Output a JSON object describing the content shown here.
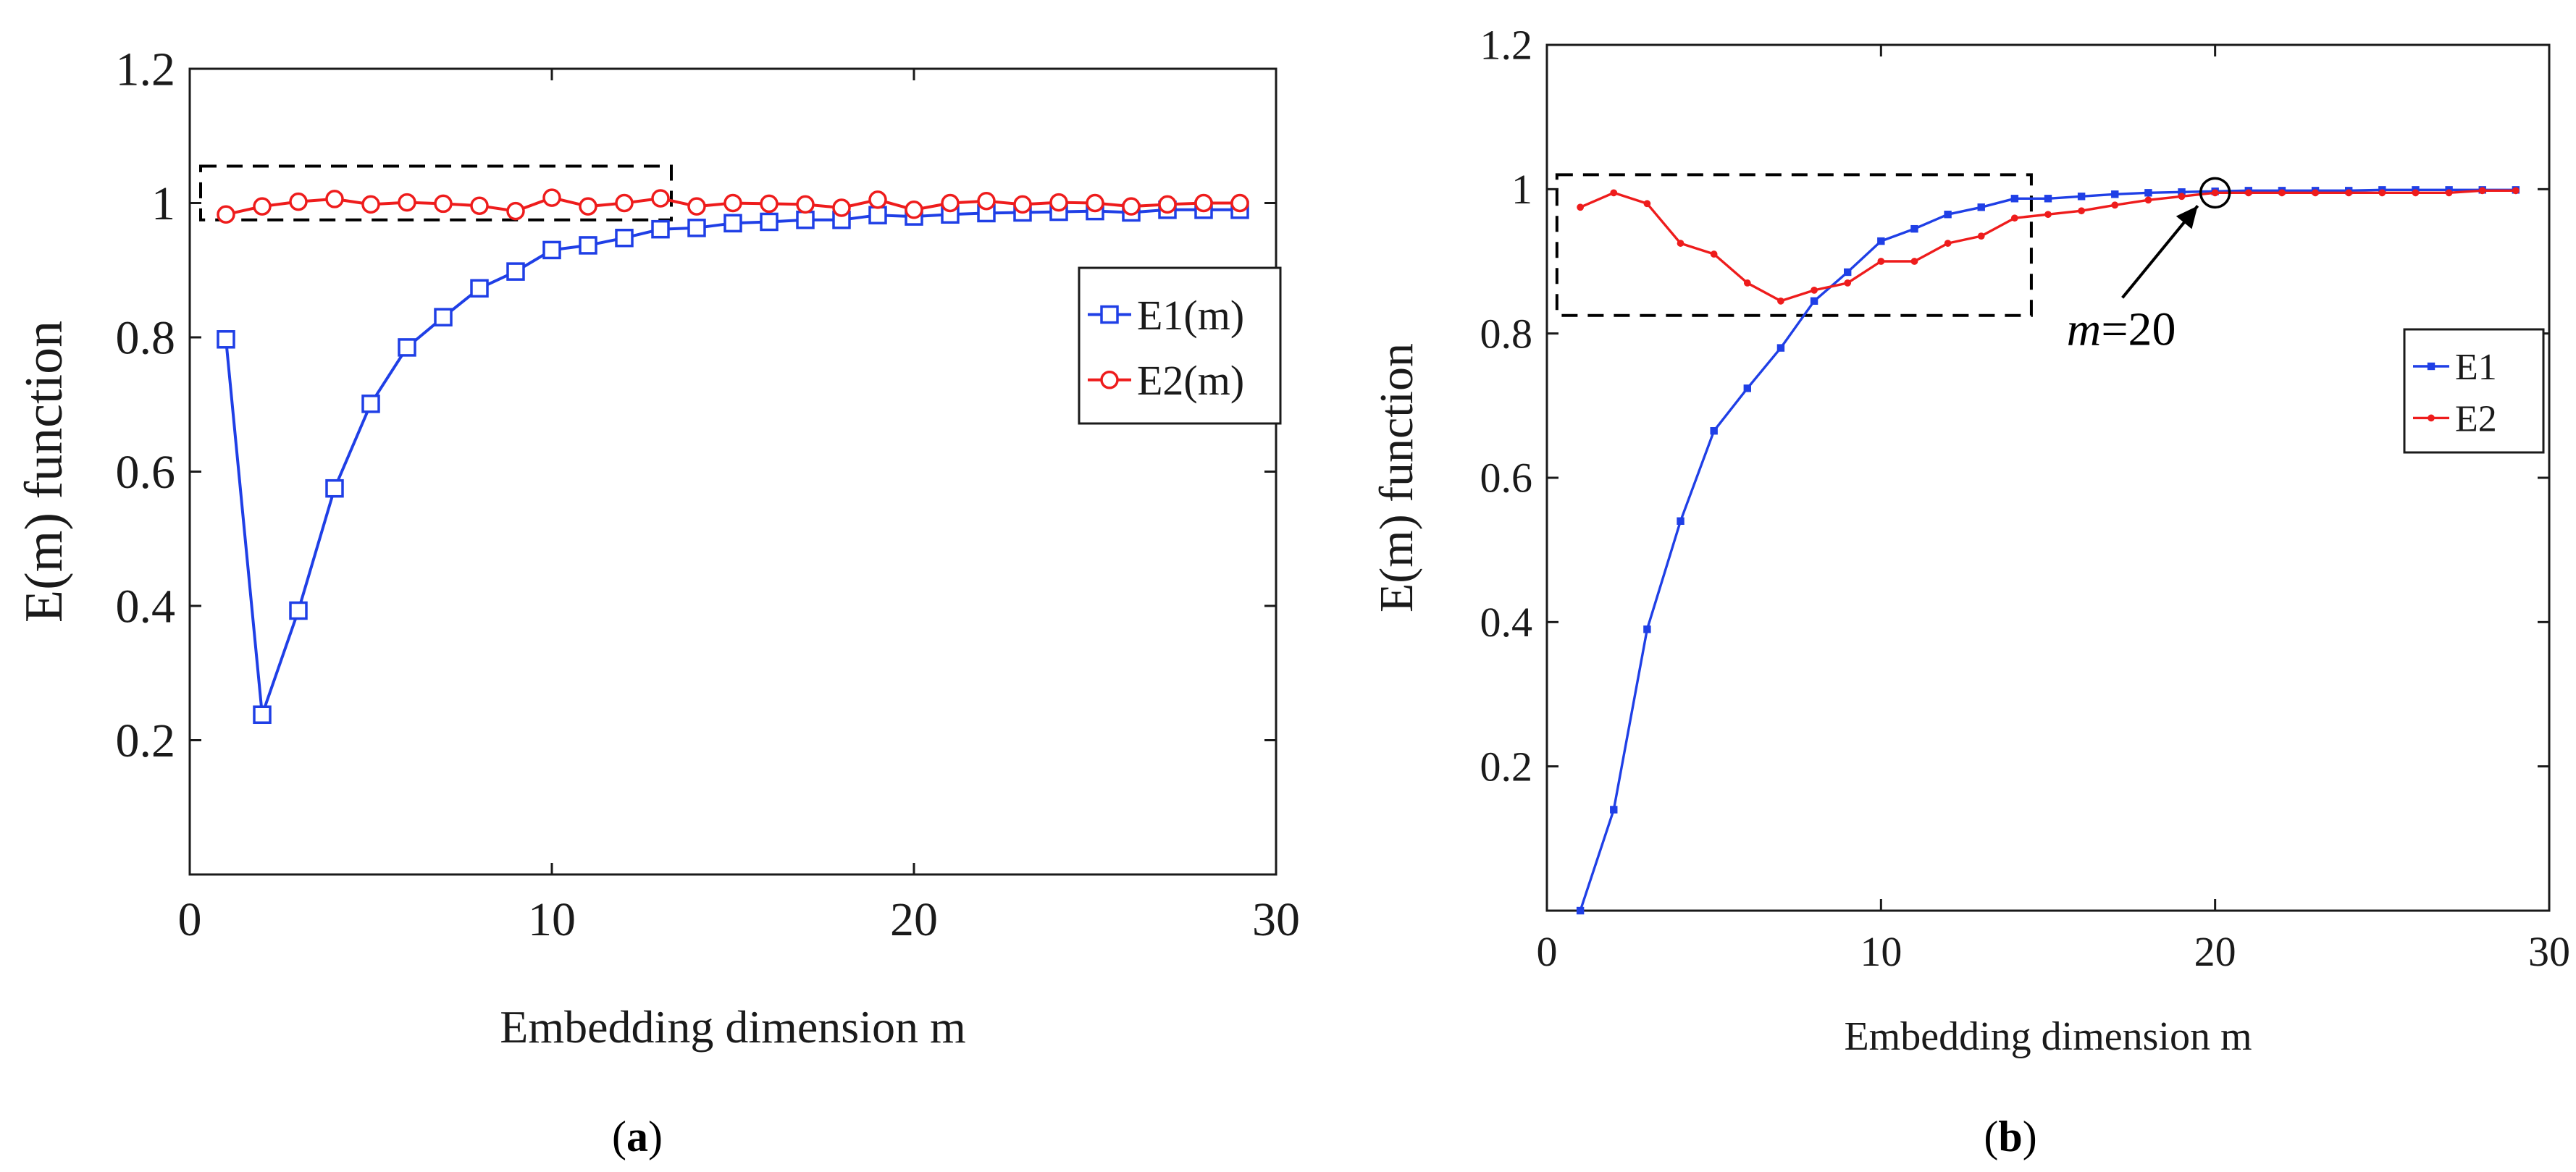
{
  "colors": {
    "e1": "#1f3fe6",
    "e2": "#ee1c1c",
    "axis": "#1a1a1a"
  },
  "chart_data": [
    {
      "id": "a",
      "type": "line",
      "panel_label": "(a)",
      "panel_label_bold": "a",
      "xlabel": "Embedding dimension m",
      "ylabel": "E(m) function",
      "xlim": [
        0,
        30
      ],
      "ylim": [
        0,
        1.2
      ],
      "xticks": [
        0,
        10,
        20,
        30
      ],
      "yticks": [
        0.2,
        0.4,
        0.6,
        0.8,
        1.0
      ],
      "ytick_labels": [
        "0.2",
        "0.4",
        "0.6",
        "0.8",
        "1"
      ],
      "top_label": "1.2",
      "marker_style": "open",
      "legend": {
        "position": "right-middle",
        "entries": [
          "E1(m)",
          "E2(m)"
        ]
      },
      "dashed_box": {
        "x": [
          0.3,
          13.3
        ],
        "y": [
          0.975,
          1.055
        ]
      },
      "x": [
        1,
        2,
        3,
        4,
        5,
        6,
        7,
        8,
        9,
        10,
        11,
        12,
        13,
        14,
        15,
        16,
        17,
        18,
        19,
        20,
        21,
        22,
        23,
        24,
        25,
        26,
        27,
        28,
        29
      ],
      "series": [
        {
          "name": "E1(m)",
          "values": [
            0.797,
            0.238,
            0.393,
            0.575,
            0.701,
            0.785,
            0.83,
            0.873,
            0.898,
            0.93,
            0.937,
            0.948,
            0.961,
            0.963,
            0.97,
            0.972,
            0.975,
            0.975,
            0.982,
            0.98,
            0.983,
            0.985,
            0.986,
            0.987,
            0.988,
            0.986,
            0.99,
            0.99,
            0.99
          ]
        },
        {
          "name": "E2(m)",
          "values": [
            0.983,
            0.995,
            1.002,
            1.006,
            0.998,
            1.001,
            0.999,
            0.996,
            0.988,
            1.008,
            0.995,
            1.0,
            1.007,
            0.995,
            1.0,
            0.999,
            0.998,
            0.993,
            1.005,
            0.99,
            1.0,
            1.003,
            0.998,
            1.001,
            1.0,
            0.995,
            0.998,
            1.0,
            1.0
          ]
        }
      ]
    },
    {
      "id": "b",
      "type": "line",
      "panel_label": "(b)",
      "panel_label_bold": "b",
      "xlabel": "Embedding dimension m",
      "ylabel": "E(m) function",
      "xlim": [
        0,
        30
      ],
      "ylim": [
        0,
        1.2
      ],
      "xticks": [
        0,
        10,
        20,
        30
      ],
      "yticks": [
        0.2,
        0.4,
        0.6,
        0.8,
        1.0
      ],
      "ytick_labels": [
        "0.2",
        "0.4",
        "0.6",
        "0.8",
        "1"
      ],
      "top_label": "1.2",
      "marker_style": "filled",
      "legend": {
        "position": "right-middle",
        "entries": [
          "E1",
          "E2"
        ]
      },
      "dashed_box": {
        "x": [
          0.3,
          14.5
        ],
        "y": [
          0.825,
          1.02
        ]
      },
      "annotation": {
        "text_italic": "m",
        "text_rest": "=20",
        "x": 20,
        "y": 0.995
      },
      "x": [
        1,
        2,
        3,
        4,
        5,
        6,
        7,
        8,
        9,
        10,
        11,
        12,
        13,
        14,
        15,
        16,
        17,
        18,
        19,
        20,
        21,
        22,
        23,
        24,
        25,
        26,
        27,
        28,
        29
      ],
      "series": [
        {
          "name": "E1",
          "values": [
            0.0,
            0.14,
            0.39,
            0.54,
            0.665,
            0.724,
            0.78,
            0.845,
            0.885,
            0.928,
            0.945,
            0.965,
            0.975,
            0.987,
            0.987,
            0.99,
            0.993,
            0.995,
            0.996,
            0.997,
            0.998,
            0.998,
            0.998,
            0.998,
            0.999,
            0.999,
            0.999,
            0.999,
            0.999
          ]
        },
        {
          "name": "E2",
          "values": [
            0.975,
            0.995,
            0.98,
            0.925,
            0.91,
            0.87,
            0.845,
            0.86,
            0.87,
            0.9,
            0.9,
            0.925,
            0.935,
            0.96,
            0.965,
            0.97,
            0.978,
            0.985,
            0.99,
            0.995,
            0.995,
            0.995,
            0.995,
            0.995,
            0.995,
            0.995,
            0.995,
            0.998,
            0.998
          ]
        }
      ]
    }
  ]
}
